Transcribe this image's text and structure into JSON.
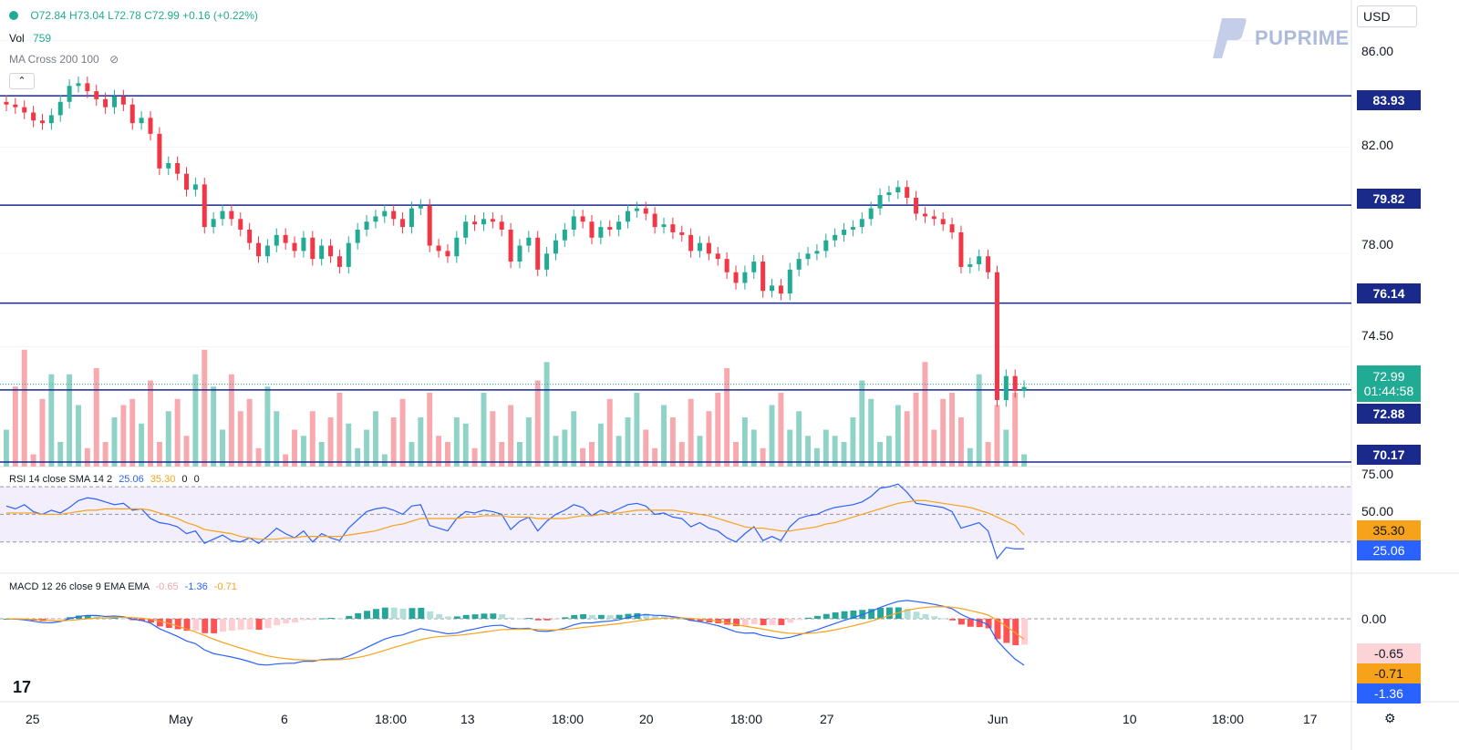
{
  "legend": {
    "ohlc": "O72.84 H73.04 L72.78 C72.99 +0.16 (+0.22%)",
    "vol_label": "Vol",
    "vol_value": "759",
    "ma_label": "MA Cross 200 100"
  },
  "currency": "USD",
  "brand": "PUPRIME",
  "rsi_legend": {
    "label": "RSI 14 close SMA 14 2",
    "v1": "25.06",
    "v2": "35.30",
    "v3": "0",
    "v4": "0"
  },
  "macd_legend": {
    "label": "MACD 12 26 close 9 EMA EMA",
    "hist": "-0.65",
    "macd": "-1.36",
    "signal": "-0.71"
  },
  "colors": {
    "up": "#22ab94",
    "down": "#f23645",
    "line": "#1a2a8a",
    "rsi": "#2962ff",
    "sma": "#f7a21b"
  },
  "chart_data": {
    "type": "candlestick",
    "y_ticks": [
      "86.00",
      "82.00",
      "78.00",
      "74.50"
    ],
    "horizontal_levels": [
      "83.93",
      "79.82",
      "76.14",
      "72.88",
      "70.17"
    ],
    "last_price": "72.99",
    "countdown": "01:44:58",
    "x_ticks": [
      "25",
      "May",
      "6",
      "18:00",
      "13",
      "18:00",
      "20",
      "18:00",
      "27",
      "Jun",
      "10",
      "18:00",
      "17"
    ],
    "closes": [
      83.6,
      83.5,
      83.3,
      83.0,
      82.9,
      83.2,
      83.7,
      84.3,
      84.4,
      84.1,
      83.8,
      83.5,
      83.9,
      83.6,
      82.9,
      83.1,
      82.5,
      81.2,
      81.4,
      81.0,
      80.4,
      80.6,
      79.0,
      79.3,
      79.6,
      79.3,
      78.9,
      78.4,
      77.9,
      78.3,
      78.7,
      78.4,
      78.1,
      78.6,
      77.8,
      78.3,
      77.9,
      77.5,
      78.4,
      78.9,
      79.2,
      79.4,
      79.6,
      79.3,
      79.0,
      79.7,
      79.8,
      78.3,
      78.1,
      77.9,
      78.6,
      79.2,
      79.1,
      79.3,
      79.2,
      78.9,
      77.7,
      78.3,
      78.6,
      77.4,
      78.0,
      78.5,
      78.9,
      79.4,
      79.2,
      78.6,
      79.0,
      78.9,
      79.2,
      79.6,
      79.7,
      79.5,
      79.0,
      79.1,
      78.8,
      78.7,
      78.1,
      78.4,
      78.0,
      77.8,
      77.3,
      76.9,
      77.3,
      77.7,
      76.6,
      76.8,
      76.5,
      77.4,
      77.8,
      78.0,
      78.1,
      78.5,
      78.7,
      78.9,
      79.0,
      79.3,
      79.7,
      80.2,
      80.3,
      80.5,
      80.1,
      79.5,
      79.4,
      79.3,
      79.1,
      78.8,
      77.5,
      77.6,
      77.9,
      77.3,
      72.5,
      73.4,
      72.84,
      72.99
    ],
    "volumes": [
      30,
      65,
      95,
      10,
      55,
      75,
      20,
      75,
      50,
      15,
      80,
      20,
      40,
      50,
      55,
      35,
      70,
      20,
      45,
      55,
      25,
      75,
      95,
      65,
      30,
      75,
      45,
      55,
      15,
      65,
      45,
      10,
      30,
      25,
      45,
      20,
      40,
      60,
      35,
      15,
      30,
      45,
      10,
      40,
      55,
      20,
      40,
      60,
      25,
      20,
      40,
      35,
      15,
      60,
      45,
      20,
      50,
      20,
      40,
      70,
      85,
      25,
      30,
      45,
      15,
      20,
      35,
      55,
      25,
      40,
      60,
      30,
      15,
      50,
      40,
      20,
      55,
      25,
      45,
      60,
      80,
      20,
      40,
      30,
      15,
      50,
      60,
      30,
      45,
      25,
      15,
      30,
      25,
      20,
      40,
      70,
      55,
      20,
      25,
      50,
      45,
      60,
      85,
      30,
      55,
      60,
      40,
      15,
      75,
      20,
      50,
      30,
      60,
      10
    ],
    "rsi": [
      56,
      54,
      57,
      52,
      50,
      53,
      51,
      55,
      60,
      62,
      61,
      59,
      57,
      58,
      53,
      54,
      47,
      44,
      43,
      41,
      36,
      38,
      29,
      32,
      35,
      31,
      30,
      33,
      29,
      34,
      40,
      36,
      33,
      38,
      30,
      36,
      33,
      31,
      40,
      46,
      52,
      54,
      55,
      53,
      50,
      56,
      57,
      42,
      40,
      38,
      47,
      52,
      51,
      53,
      52,
      50,
      39,
      45,
      48,
      38,
      45,
      50,
      53,
      57,
      55,
      49,
      53,
      51,
      54,
      57,
      58,
      56,
      50,
      51,
      48,
      47,
      41,
      44,
      40,
      38,
      33,
      30,
      36,
      41,
      31,
      34,
      31,
      41,
      47,
      49,
      50,
      53,
      55,
      56,
      57,
      59,
      63,
      69,
      70,
      72,
      66,
      58,
      57,
      56,
      55,
      52,
      40,
      42,
      44,
      38,
      18,
      26,
      25,
      25
    ],
    "rsi_sma": [
      51,
      51,
      51,
      51,
      50,
      50,
      50,
      51,
      52,
      53,
      53,
      54,
      54,
      54,
      54,
      54,
      53,
      51,
      49,
      47,
      44,
      42,
      39,
      38,
      37,
      36,
      34,
      33,
      32,
      32,
      32,
      33,
      33,
      34,
      34,
      34,
      34,
      34,
      35,
      36,
      37,
      38,
      40,
      42,
      43,
      45,
      47,
      47,
      47,
      47,
      47,
      48,
      48,
      49,
      49,
      49,
      48,
      48,
      48,
      47,
      47,
      47,
      47,
      48,
      49,
      49,
      50,
      51,
      51,
      52,
      53,
      53,
      53,
      53,
      53,
      52,
      51,
      50,
      49,
      47,
      45,
      43,
      41,
      40,
      40,
      39,
      38,
      38,
      39,
      40,
      41,
      43,
      44,
      46,
      48,
      50,
      52,
      54,
      56,
      58,
      59,
      60,
      60,
      59,
      58,
      57,
      56,
      55,
      53,
      51,
      48,
      45,
      42,
      35
    ]
  }
}
